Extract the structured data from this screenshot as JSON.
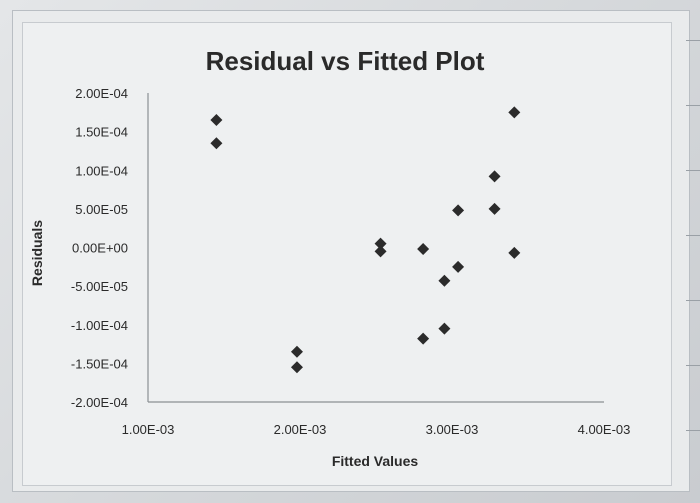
{
  "chart_data": {
    "type": "scatter",
    "title": "Residual vs Fitted Plot",
    "xlabel": "Fitted Values",
    "ylabel": "Residuals",
    "xlim": [
      0.001,
      0.004
    ],
    "ylim": [
      -0.0002,
      0.0002
    ],
    "x_ticks": [
      "1.00E-03",
      "2.00E-03",
      "3.00E-03",
      "4.00E-03"
    ],
    "y_ticks": [
      "2.00E-04",
      "1.50E-04",
      "1.00E-04",
      "5.00E-05",
      "0.00E+00",
      "-5.00E-05",
      "-1.00E-04",
      "-1.50E-04",
      "-2.00E-04"
    ],
    "marker": "diamond",
    "marker_color": "#2b2b2b",
    "grid": false,
    "points": [
      {
        "x": 0.00145,
        "y": 0.000165
      },
      {
        "x": 0.00145,
        "y": 0.000135
      },
      {
        "x": 0.00198,
        "y": -0.000135
      },
      {
        "x": 0.00198,
        "y": -0.000155
      },
      {
        "x": 0.00253,
        "y": 5e-06
      },
      {
        "x": 0.00253,
        "y": -5e-06
      },
      {
        "x": 0.00281,
        "y": -2e-06
      },
      {
        "x": 0.00281,
        "y": -0.000118
      },
      {
        "x": 0.00295,
        "y": -4.3e-05
      },
      {
        "x": 0.00295,
        "y": -0.000105
      },
      {
        "x": 0.00304,
        "y": 4.8e-05
      },
      {
        "x": 0.00304,
        "y": -2.5e-05
      },
      {
        "x": 0.00328,
        "y": 9.2e-05
      },
      {
        "x": 0.00328,
        "y": 5e-05
      },
      {
        "x": 0.00341,
        "y": 0.000175
      },
      {
        "x": 0.00341,
        "y": -7e-06
      }
    ]
  }
}
